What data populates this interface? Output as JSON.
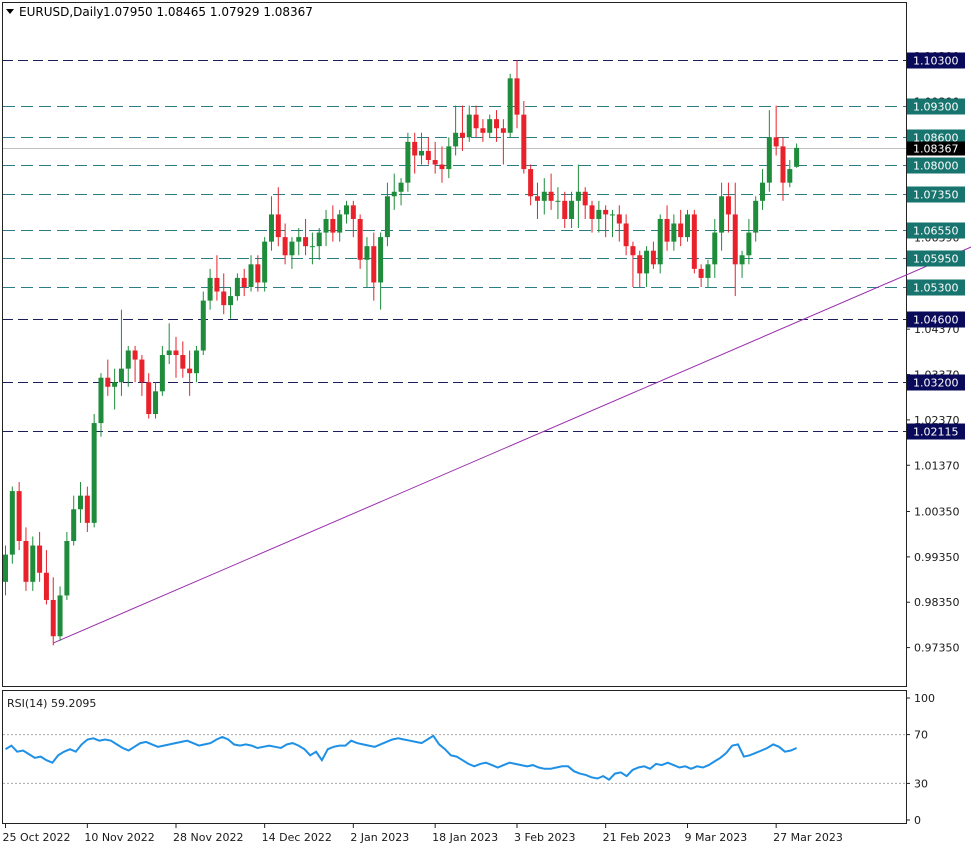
{
  "header": {
    "symbol": "EURUSD,Daily",
    "ohlc": "1.07950 1.08465 1.07929 1.08367"
  },
  "rsi_header": "RSI(14) 59.2095",
  "colors": {
    "bull": "#1e8c3a",
    "bear": "#e8212b",
    "level_line": "#1d1d5c",
    "level_label_bg": "#0a0a5a",
    "trendline": "#9b2fae",
    "rsi_line": "#1e90e6",
    "grid_dotted": "#aaaaaa",
    "current_price_bg": "#000000"
  },
  "chart_data": [
    {
      "type": "candlestick",
      "title": "EURUSD,Daily",
      "ylim": [
        0.969,
        1.109
      ],
      "price_axis_ticks": [
        "1.10390",
        "1.09390",
        "1.08390",
        "1.07390",
        "1.06390",
        "1.05370",
        "1.04370",
        "1.03370",
        "1.02370",
        "1.01370",
        "1.00350",
        "0.99350",
        "0.98350",
        "0.97350"
      ],
      "current_price": "1.08367",
      "levels": [
        {
          "value": 1.103,
          "label": "1.10300",
          "style": "dark-dashed"
        },
        {
          "value": 1.093,
          "label": "1.09300",
          "style": "teal-dashed"
        },
        {
          "value": 1.086,
          "label": "1.08600",
          "style": "teal-dashed"
        },
        {
          "value": 1.08,
          "label": "1.08000",
          "style": "teal-dashed"
        },
        {
          "value": 1.0735,
          "label": "1.07350",
          "style": "teal-dashed"
        },
        {
          "value": 1.0655,
          "label": "1.06550",
          "style": "teal-dashed"
        },
        {
          "value": 1.0595,
          "label": "1.05950",
          "style": "teal-dashed"
        },
        {
          "value": 1.053,
          "label": "1.05300",
          "style": "teal-dashed"
        },
        {
          "value": 1.046,
          "label": "1.04600",
          "style": "dark-dashed"
        },
        {
          "value": 1.032,
          "label": "1.03200",
          "style": "dark-dashed"
        },
        {
          "value": 1.02115,
          "label": "1.02115",
          "style": "dark-dashed"
        }
      ],
      "trendline": {
        "start": {
          "bar": 7,
          "price": 0.9745
        },
        "end": {
          "bar": 143,
          "price": 1.0675
        }
      },
      "x_labels": [
        {
          "bar": 0,
          "label": "25 Oct 2022"
        },
        {
          "bar": 12,
          "label": "10 Nov 2022"
        },
        {
          "bar": 25,
          "label": "28 Nov 2022"
        },
        {
          "bar": 38,
          "label": "14 Dec 2022"
        },
        {
          "bar": 51,
          "label": "2 Jan 2023"
        },
        {
          "bar": 63,
          "label": "18 Jan 2023"
        },
        {
          "bar": 75,
          "label": "3 Feb 2023"
        },
        {
          "bar": 88,
          "label": "21 Feb 2023"
        },
        {
          "bar": 100,
          "label": "9 Mar 2023"
        },
        {
          "bar": 113,
          "label": "27 Mar 2023"
        }
      ],
      "candles": [
        [
          0.988,
          0.996,
          0.985,
          0.994
        ],
        [
          0.994,
          1.009,
          0.992,
          1.008
        ],
        [
          1.008,
          1.01,
          0.995,
          0.997
        ],
        [
          0.997,
          1.0,
          0.986,
          0.988
        ],
        [
          0.988,
          0.998,
          0.986,
          0.996
        ],
        [
          0.996,
          0.999,
          0.988,
          0.99
        ],
        [
          0.99,
          0.995,
          0.983,
          0.984
        ],
        [
          0.984,
          0.989,
          0.974,
          0.976
        ],
        [
          0.976,
          0.987,
          0.975,
          0.985
        ],
        [
          0.985,
          0.999,
          0.984,
          0.997
        ],
        [
          0.997,
          1.007,
          0.996,
          1.004
        ],
        [
          1.004,
          1.01,
          1.001,
          1.007
        ],
        [
          1.007,
          1.009,
          0.999,
          1.001
        ],
        [
          1.001,
          1.025,
          1.0,
          1.023
        ],
        [
          1.023,
          1.034,
          1.02,
          1.033
        ],
        [
          1.033,
          1.037,
          1.029,
          1.031
        ],
        [
          1.031,
          1.035,
          1.026,
          1.032
        ],
        [
          1.032,
          1.048,
          1.029,
          1.035
        ],
        [
          1.035,
          1.04,
          1.031,
          1.039
        ],
        [
          1.039,
          1.04,
          1.032,
          1.037
        ],
        [
          1.037,
          1.038,
          1.029,
          1.032
        ],
        [
          1.032,
          1.034,
          1.024,
          1.025
        ],
        [
          1.025,
          1.032,
          1.024,
          1.03
        ],
        [
          1.03,
          1.04,
          1.029,
          1.038
        ],
        [
          1.038,
          1.045,
          1.036,
          1.039
        ],
        [
          1.039,
          1.042,
          1.033,
          1.038
        ],
        [
          1.038,
          1.041,
          1.033,
          1.035
        ],
        [
          1.035,
          1.039,
          1.029,
          1.034
        ],
        [
          1.034,
          1.04,
          1.032,
          1.039
        ],
        [
          1.039,
          1.052,
          1.038,
          1.05
        ],
        [
          1.05,
          1.057,
          1.048,
          1.055
        ],
        [
          1.055,
          1.06,
          1.05,
          1.052
        ],
        [
          1.052,
          1.056,
          1.047,
          1.049
        ],
        [
          1.049,
          1.053,
          1.046,
          1.051
        ],
        [
          1.051,
          1.056,
          1.05,
          1.055
        ],
        [
          1.055,
          1.057,
          1.051,
          1.053
        ],
        [
          1.053,
          1.06,
          1.052,
          1.058
        ],
        [
          1.058,
          1.06,
          1.052,
          1.054
        ],
        [
          1.054,
          1.064,
          1.052,
          1.063
        ],
        [
          1.063,
          1.073,
          1.061,
          1.069
        ],
        [
          1.069,
          1.075,
          1.062,
          1.064
        ],
        [
          1.064,
          1.067,
          1.058,
          1.06
        ],
        [
          1.06,
          1.064,
          1.057,
          1.063
        ],
        [
          1.063,
          1.066,
          1.06,
          1.064
        ],
        [
          1.064,
          1.068,
          1.06,
          1.062
        ],
        [
          1.062,
          1.065,
          1.058,
          1.062
        ],
        [
          1.062,
          1.066,
          1.059,
          1.065
        ],
        [
          1.065,
          1.07,
          1.062,
          1.068
        ],
        [
          1.068,
          1.071,
          1.063,
          1.065
        ],
        [
          1.065,
          1.07,
          1.063,
          1.069
        ],
        [
          1.069,
          1.072,
          1.067,
          1.071
        ],
        [
          1.071,
          1.072,
          1.064,
          1.068
        ],
        [
          1.068,
          1.069,
          1.057,
          1.059
        ],
        [
          1.059,
          1.064,
          1.053,
          1.062
        ],
        [
          1.062,
          1.065,
          1.05,
          1.054
        ],
        [
          1.054,
          1.065,
          1.048,
          1.064
        ],
        [
          1.064,
          1.076,
          1.062,
          1.073
        ],
        [
          1.073,
          1.078,
          1.07,
          1.074
        ],
        [
          1.074,
          1.077,
          1.071,
          1.076
        ],
        [
          1.076,
          1.087,
          1.074,
          1.085
        ],
        [
          1.085,
          1.087,
          1.078,
          1.082
        ],
        [
          1.082,
          1.087,
          1.08,
          1.083
        ],
        [
          1.083,
          1.086,
          1.08,
          1.081
        ],
        [
          1.081,
          1.085,
          1.078,
          1.08
        ],
        [
          1.08,
          1.084,
          1.076,
          1.079
        ],
        [
          1.079,
          1.086,
          1.077,
          1.084
        ],
        [
          1.084,
          1.093,
          1.082,
          1.087
        ],
        [
          1.087,
          1.093,
          1.083,
          1.086
        ],
        [
          1.086,
          1.093,
          1.085,
          1.091
        ],
        [
          1.091,
          1.093,
          1.086,
          1.088
        ],
        [
          1.088,
          1.09,
          1.085,
          1.087
        ],
        [
          1.087,
          1.091,
          1.086,
          1.09
        ],
        [
          1.09,
          1.092,
          1.085,
          1.088
        ],
        [
          1.088,
          1.09,
          1.08,
          1.087
        ],
        [
          1.087,
          1.1,
          1.086,
          1.099
        ],
        [
          1.099,
          1.103,
          1.088,
          1.091
        ],
        [
          1.091,
          1.094,
          1.078,
          1.079
        ],
        [
          1.079,
          1.08,
          1.071,
          1.073
        ],
        [
          1.073,
          1.076,
          1.068,
          1.072
        ],
        [
          1.072,
          1.077,
          1.069,
          1.074
        ],
        [
          1.074,
          1.078,
          1.07,
          1.072
        ],
        [
          1.072,
          1.075,
          1.068,
          1.072
        ],
        [
          1.072,
          1.074,
          1.066,
          1.068
        ],
        [
          1.068,
          1.074,
          1.066,
          1.072
        ],
        [
          1.072,
          1.08,
          1.066,
          1.074
        ],
        [
          1.074,
          1.075,
          1.068,
          1.071
        ],
        [
          1.071,
          1.072,
          1.065,
          1.068
        ],
        [
          1.068,
          1.072,
          1.065,
          1.07
        ],
        [
          1.07,
          1.071,
          1.064,
          1.069
        ],
        [
          1.069,
          1.07,
          1.064,
          1.069
        ],
        [
          1.069,
          1.071,
          1.063,
          1.067
        ],
        [
          1.067,
          1.069,
          1.06,
          1.062
        ],
        [
          1.062,
          1.063,
          1.053,
          1.06
        ],
        [
          1.06,
          1.061,
          1.053,
          1.056
        ],
        [
          1.056,
          1.062,
          1.053,
          1.061
        ],
        [
          1.061,
          1.063,
          1.057,
          1.058
        ],
        [
          1.058,
          1.069,
          1.056,
          1.068
        ],
        [
          1.068,
          1.071,
          1.061,
          1.063
        ],
        [
          1.063,
          1.069,
          1.061,
          1.067
        ],
        [
          1.067,
          1.07,
          1.062,
          1.064
        ],
        [
          1.064,
          1.07,
          1.063,
          1.069
        ],
        [
          1.069,
          1.07,
          1.056,
          1.057
        ],
        [
          1.057,
          1.058,
          1.053,
          1.055
        ],
        [
          1.055,
          1.059,
          1.053,
          1.058
        ],
        [
          1.058,
          1.068,
          1.055,
          1.065
        ],
        [
          1.065,
          1.076,
          1.061,
          1.073
        ],
        [
          1.073,
          1.076,
          1.065,
          1.069
        ],
        [
          1.069,
          1.076,
          1.051,
          1.058
        ],
        [
          1.058,
          1.061,
          1.055,
          1.06
        ],
        [
          1.06,
          1.068,
          1.058,
          1.065
        ],
        [
          1.065,
          1.073,
          1.063,
          1.072
        ],
        [
          1.072,
          1.079,
          1.07,
          1.076
        ],
        [
          1.076,
          1.092,
          1.074,
          1.086
        ],
        [
          1.086,
          1.093,
          1.082,
          1.084
        ],
        [
          1.084,
          1.086,
          1.072,
          1.076
        ],
        [
          1.076,
          1.081,
          1.075,
          1.079
        ],
        [
          1.0795,
          1.08465,
          1.07929,
          1.08367
        ]
      ]
    },
    {
      "type": "line",
      "title": "RSI(14) 59.2095",
      "ylim": [
        0,
        100
      ],
      "y_ticks": [
        "100",
        "70",
        "30",
        "0"
      ],
      "reference_lines": [
        70,
        30
      ],
      "values": [
        58,
        61,
        56,
        57,
        54,
        51,
        52,
        49,
        47,
        53,
        56,
        58,
        56,
        62,
        66,
        67,
        65,
        66,
        65,
        62,
        59,
        57,
        60,
        63,
        64,
        62,
        60,
        61,
        62,
        63,
        64,
        65,
        63,
        61,
        62,
        63,
        66,
        68,
        66,
        62,
        61,
        62,
        61,
        59,
        60,
        61,
        60,
        59,
        62,
        63,
        61,
        58,
        53,
        56,
        49,
        58,
        60,
        61,
        61,
        65,
        63,
        62,
        61,
        60,
        62,
        64,
        66,
        67,
        66,
        65,
        64,
        63,
        66,
        69,
        62,
        58,
        53,
        52,
        49,
        46,
        44,
        46,
        47,
        45,
        43,
        45,
        47,
        46,
        45,
        44,
        45,
        43,
        42,
        42,
        43,
        44,
        44,
        40,
        38,
        37,
        35,
        34,
        36,
        33,
        38,
        39,
        36,
        41,
        43,
        44,
        42,
        46,
        45,
        47,
        45,
        43,
        44,
        42,
        44,
        43,
        45,
        48,
        51,
        55,
        61,
        62,
        52,
        53,
        55,
        57,
        59,
        62,
        60,
        56,
        57,
        59
      ],
      "rsi_values_note": ""
    }
  ]
}
